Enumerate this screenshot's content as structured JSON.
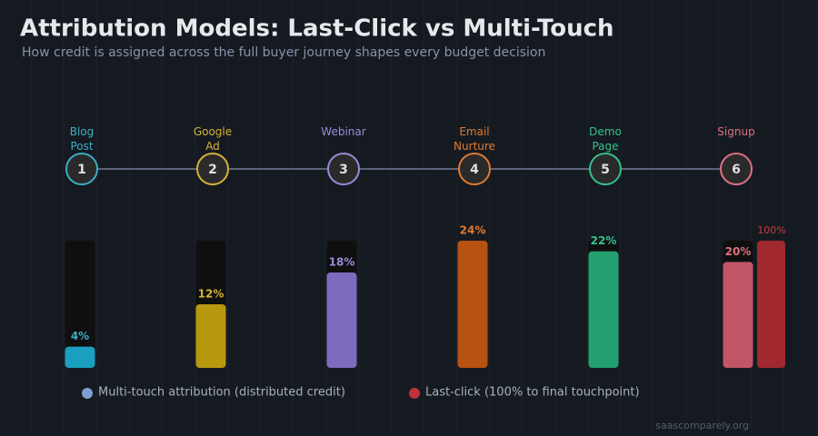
{
  "chart_data": {
    "type": "bar",
    "title": "Attribution Models: Last-Click vs Multi-Touch",
    "subtitle": "How credit is assigned across the full buyer journey shapes every budget decision",
    "categories": [
      "Blog\nPost",
      "Google\nAd",
      "Webinar",
      "Email\nNurture",
      "Demo\nPage",
      "Signup"
    ],
    "touchpoints": [
      1,
      2,
      3,
      4,
      5,
      6
    ],
    "category_colors": [
      "#3aaec4",
      "#d4b23a",
      "#9a8ad8",
      "#e07a30",
      "#35c08a",
      "#e07080"
    ],
    "series": [
      {
        "name": "Multi-touch attribution (distributed credit)",
        "color": "#7f9fd0",
        "colors": [
          "#1a9fbf",
          "#b8980f",
          "#7d6bbf",
          "#b85210",
          "#22a070",
          "#c05565"
        ],
        "values": [
          4,
          12,
          18,
          24,
          22,
          20
        ],
        "value_labels": [
          "4%",
          "12%",
          "18%",
          "24%",
          "22%",
          "20%"
        ]
      },
      {
        "name": "Last-click (100% to final touchpoint)",
        "color": "#c0333a",
        "axis": "y2",
        "colors": [
          null,
          null,
          null,
          null,
          null,
          "#a0282e"
        ],
        "values": [
          null,
          null,
          null,
          null,
          null,
          100
        ],
        "value_labels": [
          null,
          null,
          null,
          null,
          null,
          "100%"
        ]
      }
    ],
    "ylim": [
      0,
      24
    ],
    "y2lim": [
      0,
      100
    ],
    "source": "saascomparely.org"
  }
}
